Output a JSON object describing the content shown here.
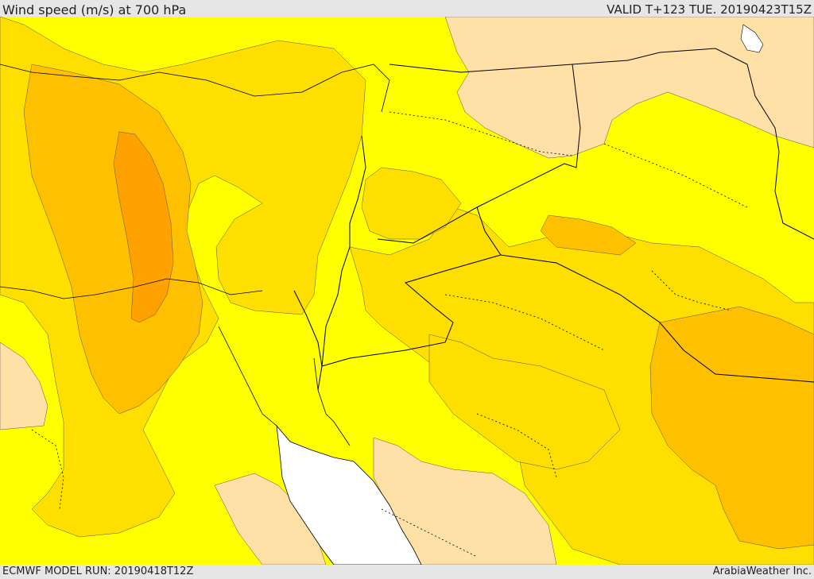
{
  "header": {
    "title": "Wind speed (m/s) at 700 hPa",
    "valid_time": "VALID T+123 TUE. 20190423T15Z"
  },
  "footer": {
    "model_run": "ECMWF MODEL RUN: 20190418T12Z",
    "credit": "ArabiaWeather Inc."
  },
  "colors": {
    "band_low": "#ffe0a6",
    "band_1": "#ffff00",
    "band_2": "#ffdf00",
    "band_3": "#ffc000",
    "band_4": "#ffa200",
    "sea": "#ffffff",
    "border": "#000000"
  }
}
